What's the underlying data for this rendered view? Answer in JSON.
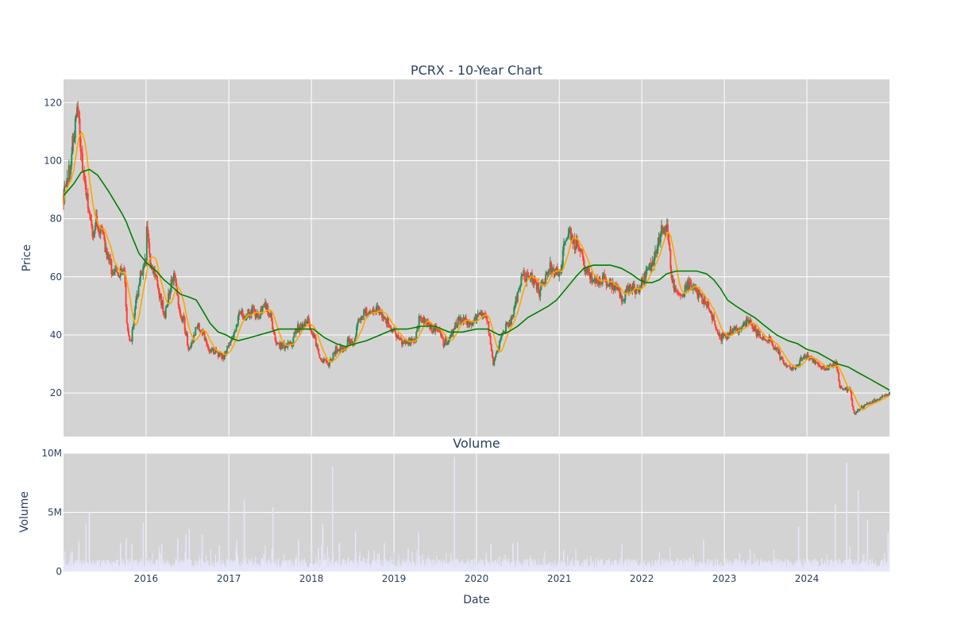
{
  "chart_data": [
    {
      "type": "candlestick",
      "title": "PCRX - 10-Year Chart",
      "ylabel": "Price",
      "ylim": [
        5,
        128
      ],
      "xlim": [
        "2015-01-01",
        "2024-12-31"
      ],
      "y_ticks": [
        20,
        40,
        60,
        80,
        100,
        120
      ],
      "x_ticks": [
        "2016",
        "2017",
        "2018",
        "2019",
        "2020",
        "2021",
        "2022",
        "2023",
        "2024"
      ],
      "grid": true,
      "colors": {
        "background": "#d3d3d3",
        "grid": "#ffffff",
        "up": "#2e8b57",
        "down": "#ff4136",
        "ma_short": "#ffa500",
        "ma_long": "#008000"
      },
      "price_points": [
        [
          "2015-01-02",
          88
        ],
        [
          "2015-01-20",
          94
        ],
        [
          "2015-02-05",
          102
        ],
        [
          "2015-02-20",
          112
        ],
        [
          "2015-03-05",
          118
        ],
        [
          "2015-03-15",
          108
        ],
        [
          "2015-03-25",
          96
        ],
        [
          "2015-04-10",
          90
        ],
        [
          "2015-04-25",
          82
        ],
        [
          "2015-05-10",
          72
        ],
        [
          "2015-05-25",
          79
        ],
        [
          "2015-06-15",
          76
        ],
        [
          "2015-07-10",
          68
        ],
        [
          "2015-08-05",
          62
        ],
        [
          "2015-09-05",
          60
        ],
        [
          "2015-09-25",
          64
        ],
        [
          "2015-10-10",
          42
        ],
        [
          "2015-10-25",
          37
        ],
        [
          "2015-11-15",
          50
        ],
        [
          "2015-12-10",
          62
        ],
        [
          "2015-12-31",
          65
        ],
        [
          "2016-01-05",
          78
        ],
        [
          "2016-01-20",
          64
        ],
        [
          "2016-02-10",
          62
        ],
        [
          "2016-03-05",
          52
        ],
        [
          "2016-03-25",
          47
        ],
        [
          "2016-04-20",
          57
        ],
        [
          "2016-05-05",
          63
        ],
        [
          "2016-05-25",
          48
        ],
        [
          "2016-06-15",
          45
        ],
        [
          "2016-07-05",
          36
        ],
        [
          "2016-07-25",
          38
        ],
        [
          "2016-08-15",
          44
        ],
        [
          "2016-09-10",
          40
        ],
        [
          "2016-10-05",
          35
        ],
        [
          "2016-11-05",
          34
        ],
        [
          "2016-12-05",
          32
        ],
        [
          "2017-01-10",
          38
        ],
        [
          "2017-01-31",
          42
        ],
        [
          "2017-02-20",
          48
        ],
        [
          "2017-03-10",
          46
        ],
        [
          "2017-04-15",
          49
        ],
        [
          "2017-05-10",
          46
        ],
        [
          "2017-06-10",
          50
        ],
        [
          "2017-07-05",
          46
        ],
        [
          "2017-07-25",
          38
        ],
        [
          "2017-08-20",
          36
        ],
        [
          "2017-09-15",
          37
        ],
        [
          "2017-10-05",
          36
        ],
        [
          "2017-10-25",
          42
        ],
        [
          "2017-11-20",
          43
        ],
        [
          "2017-12-15",
          46
        ],
        [
          "2018-01-10",
          40
        ],
        [
          "2018-02-05",
          33
        ],
        [
          "2018-02-25",
          31
        ],
        [
          "2018-03-20",
          30
        ],
        [
          "2018-04-20",
          35
        ],
        [
          "2018-05-20",
          35
        ],
        [
          "2018-06-15",
          38
        ],
        [
          "2018-07-05",
          36
        ],
        [
          "2018-07-25",
          44
        ],
        [
          "2018-08-15",
          48
        ],
        [
          "2018-09-15",
          47
        ],
        [
          "2018-10-15",
          49
        ],
        [
          "2018-11-15",
          47
        ],
        [
          "2018-12-05",
          44
        ],
        [
          "2019-01-05",
          40
        ],
        [
          "2019-02-05",
          38
        ],
        [
          "2019-03-05",
          38
        ],
        [
          "2019-04-05",
          38
        ],
        [
          "2019-04-25",
          46
        ],
        [
          "2019-05-20",
          44
        ],
        [
          "2019-06-15",
          42
        ],
        [
          "2019-07-15",
          42
        ],
        [
          "2019-08-10",
          37
        ],
        [
          "2019-09-10",
          40
        ],
        [
          "2019-10-10",
          45
        ],
        [
          "2019-11-10",
          45
        ],
        [
          "2019-12-10",
          44
        ],
        [
          "2020-01-10",
          46
        ],
        [
          "2020-02-05",
          47
        ],
        [
          "2020-02-25",
          42
        ],
        [
          "2020-03-15",
          29
        ],
        [
          "2020-04-05",
          35
        ],
        [
          "2020-04-25",
          40
        ],
        [
          "2020-05-20",
          44
        ],
        [
          "2020-06-10",
          46
        ],
        [
          "2020-06-30",
          54
        ],
        [
          "2020-07-20",
          59
        ],
        [
          "2020-08-15",
          61
        ],
        [
          "2020-09-15",
          58
        ],
        [
          "2020-10-05",
          55
        ],
        [
          "2020-11-05",
          60
        ],
        [
          "2020-11-20",
          64
        ],
        [
          "2020-12-10",
          61
        ],
        [
          "2021-01-05",
          62
        ],
        [
          "2021-01-25",
          72
        ],
        [
          "2021-02-15",
          76
        ],
        [
          "2021-03-05",
          72
        ],
        [
          "2021-03-25",
          70
        ],
        [
          "2021-04-20",
          64
        ],
        [
          "2021-05-20",
          60
        ],
        [
          "2021-06-20",
          58
        ],
        [
          "2021-07-15",
          60
        ],
        [
          "2021-08-15",
          58
        ],
        [
          "2021-09-10",
          56
        ],
        [
          "2021-10-05",
          52
        ],
        [
          "2021-10-25",
          55
        ],
        [
          "2021-11-15",
          57
        ],
        [
          "2021-12-15",
          54
        ],
        [
          "2022-01-10",
          60
        ],
        [
          "2022-02-05",
          63
        ],
        [
          "2022-02-25",
          65
        ],
        [
          "2022-03-15",
          72
        ],
        [
          "2022-04-05",
          78
        ],
        [
          "2022-04-25",
          76
        ],
        [
          "2022-05-10",
          62
        ],
        [
          "2022-05-25",
          56
        ],
        [
          "2022-06-20",
          54
        ],
        [
          "2022-07-20",
          57
        ],
        [
          "2022-08-20",
          56
        ],
        [
          "2022-09-20",
          53
        ],
        [
          "2022-10-20",
          50
        ],
        [
          "2022-11-20",
          44
        ],
        [
          "2022-12-15",
          39
        ],
        [
          "2023-01-15",
          40
        ],
        [
          "2023-02-15",
          42
        ],
        [
          "2023-03-10",
          41
        ],
        [
          "2023-04-05",
          44
        ],
        [
          "2023-04-25",
          46
        ],
        [
          "2023-05-20",
          41
        ],
        [
          "2023-06-20",
          39
        ],
        [
          "2023-07-20",
          38
        ],
        [
          "2023-08-20",
          35
        ],
        [
          "2023-09-20",
          30
        ],
        [
          "2023-10-20",
          28
        ],
        [
          "2023-11-20",
          30
        ],
        [
          "2023-12-20",
          33
        ],
        [
          "2024-01-20",
          32
        ],
        [
          "2024-02-20",
          30
        ],
        [
          "2024-03-20",
          28
        ],
        [
          "2024-04-20",
          30
        ],
        [
          "2024-05-10",
          30
        ],
        [
          "2024-05-25",
          22
        ],
        [
          "2024-06-20",
          21
        ],
        [
          "2024-07-10",
          22
        ],
        [
          "2024-07-25",
          13
        ],
        [
          "2024-08-15",
          14
        ],
        [
          "2024-09-15",
          16
        ],
        [
          "2024-10-15",
          17
        ],
        [
          "2024-11-15",
          18
        ],
        [
          "2024-12-31",
          20
        ]
      ],
      "ma_long_points": [
        [
          "2015-01-02",
          88
        ],
        [
          "2015-02-15",
          92
        ],
        [
          "2015-03-20",
          96
        ],
        [
          "2015-04-25",
          97
        ],
        [
          "2015-06-01",
          95
        ],
        [
          "2015-07-15",
          90
        ],
        [
          "2015-08-15",
          86
        ],
        [
          "2015-09-15",
          82
        ],
        [
          "2015-10-05",
          79
        ],
        [
          "2015-10-30",
          74
        ],
        [
          "2015-12-01",
          68
        ],
        [
          "2016-01-01",
          65
        ],
        [
          "2016-02-15",
          62
        ],
        [
          "2016-03-20",
          59
        ],
        [
          "2016-04-20",
          57
        ],
        [
          "2016-06-01",
          54
        ],
        [
          "2016-07-10",
          53
        ],
        [
          "2016-08-10",
          52
        ],
        [
          "2016-09-10",
          48
        ],
        [
          "2016-10-10",
          44
        ],
        [
          "2016-11-15",
          41
        ],
        [
          "2016-12-20",
          40
        ],
        [
          "2017-01-10",
          39
        ],
        [
          "2017-02-10",
          38
        ],
        [
          "2017-04-01",
          39
        ],
        [
          "2017-05-15",
          40
        ],
        [
          "2017-07-01",
          41
        ],
        [
          "2017-08-10",
          42
        ],
        [
          "2017-10-01",
          42
        ],
        [
          "2017-12-01",
          42
        ],
        [
          "2018-01-10",
          42
        ],
        [
          "2018-03-01",
          39
        ],
        [
          "2018-04-20",
          37
        ],
        [
          "2018-06-01",
          36
        ],
        [
          "2018-07-15",
          37
        ],
        [
          "2018-09-01",
          38
        ],
        [
          "2018-11-01",
          40
        ],
        [
          "2019-01-01",
          42
        ],
        [
          "2019-03-01",
          42
        ],
        [
          "2019-05-01",
          43
        ],
        [
          "2019-07-01",
          43
        ],
        [
          "2019-09-01",
          41
        ],
        [
          "2019-11-01",
          41
        ],
        [
          "2020-01-01",
          42
        ],
        [
          "2020-02-20",
          42
        ],
        [
          "2020-04-10",
          40
        ],
        [
          "2020-05-20",
          41
        ],
        [
          "2020-07-01",
          43
        ],
        [
          "2020-08-15",
          46
        ],
        [
          "2020-10-01",
          48
        ],
        [
          "2020-11-15",
          50
        ],
        [
          "2020-12-20",
          52
        ],
        [
          "2021-02-01",
          56
        ],
        [
          "2021-03-15",
          60
        ],
        [
          "2021-04-20",
          63
        ],
        [
          "2021-06-01",
          64
        ],
        [
          "2021-07-15",
          64
        ],
        [
          "2021-08-15",
          64
        ],
        [
          "2021-10-01",
          63
        ],
        [
          "2021-11-15",
          61
        ],
        [
          "2021-12-20",
          59
        ],
        [
          "2022-01-20",
          58
        ],
        [
          "2022-02-15",
          58
        ],
        [
          "2022-03-20",
          59
        ],
        [
          "2022-04-20",
          61
        ],
        [
          "2022-06-01",
          62
        ],
        [
          "2022-07-15",
          62
        ],
        [
          "2022-09-01",
          62
        ],
        [
          "2022-10-15",
          61
        ],
        [
          "2022-11-15",
          59
        ],
        [
          "2022-12-15",
          56
        ],
        [
          "2023-01-15",
          52
        ],
        [
          "2023-02-20",
          50
        ],
        [
          "2023-04-01",
          48
        ],
        [
          "2023-05-15",
          46
        ],
        [
          "2023-07-01",
          43
        ],
        [
          "2023-08-20",
          40
        ],
        [
          "2023-10-10",
          38
        ],
        [
          "2023-11-20",
          37
        ],
        [
          "2024-01-01",
          35
        ],
        [
          "2024-02-15",
          34
        ],
        [
          "2024-04-01",
          32
        ],
        [
          "2024-05-15",
          30
        ],
        [
          "2024-07-01",
          29
        ],
        [
          "2024-08-15",
          27
        ],
        [
          "2024-10-01",
          25
        ],
        [
          "2024-11-15",
          23
        ],
        [
          "2024-12-31",
          21
        ]
      ]
    },
    {
      "type": "bar",
      "title": "Volume",
      "xlabel": "Date",
      "ylabel": "Volume",
      "ylim": [
        0,
        10000000
      ],
      "y_ticks": [
        0,
        5000000,
        10000000
      ],
      "y_tick_labels": [
        "0",
        "5M",
        "10M"
      ],
      "x_ticks": [
        "2016",
        "2017",
        "2018",
        "2019",
        "2020",
        "2021",
        "2022",
        "2023",
        "2024"
      ],
      "colors": {
        "bar": "#e6e6fa",
        "background": "#d3d3d3"
      },
      "spikes": [
        [
          "2015-03-10",
          2.6
        ],
        [
          "2015-04-10",
          4.0
        ],
        [
          "2015-04-25",
          5.0
        ],
        [
          "2015-09-10",
          2.4
        ],
        [
          "2015-10-05",
          2.8
        ],
        [
          "2015-10-30",
          2.3
        ],
        [
          "2015-12-20",
          4.1
        ],
        [
          "2016-03-10",
          2.3
        ],
        [
          "2016-05-20",
          2.8
        ],
        [
          "2016-06-25",
          3.2
        ],
        [
          "2016-07-10",
          3.6
        ],
        [
          "2016-09-05",
          3.1
        ],
        [
          "2016-11-20",
          2.2
        ],
        [
          "2017-01-01",
          5.2
        ],
        [
          "2017-02-05",
          2.6
        ],
        [
          "2017-03-10",
          6.0
        ],
        [
          "2017-07-15",
          5.4
        ],
        [
          "2017-11-05",
          2.7
        ],
        [
          "2018-02-01",
          2.0
        ],
        [
          "2018-02-20",
          4.0
        ],
        [
          "2018-04-05",
          8.9
        ],
        [
          "2018-05-05",
          2.4
        ],
        [
          "2018-07-15",
          3.4
        ],
        [
          "2018-09-10",
          1.8
        ],
        [
          "2018-11-20",
          2.4
        ],
        [
          "2019-03-05",
          1.9
        ],
        [
          "2019-04-20",
          3.3
        ],
        [
          "2019-09-25",
          9.7
        ],
        [
          "2020-03-05",
          2.3
        ],
        [
          "2020-06-10",
          2.4
        ],
        [
          "2020-07-01",
          2.5
        ],
        [
          "2021-01-20",
          1.8
        ],
        [
          "2021-10-05",
          2.3
        ],
        [
          "2022-03-20",
          1.6
        ],
        [
          "2022-10-01",
          2.7
        ],
        [
          "2023-03-10",
          1.5
        ],
        [
          "2023-04-25",
          1.9
        ],
        [
          "2023-11-25",
          3.8
        ],
        [
          "2024-05-05",
          5.7
        ],
        [
          "2024-06-25",
          9.2
        ],
        [
          "2024-08-15",
          6.9
        ],
        [
          "2024-09-25",
          4.4
        ],
        [
          "2024-12-25",
          3.3
        ]
      ]
    }
  ]
}
